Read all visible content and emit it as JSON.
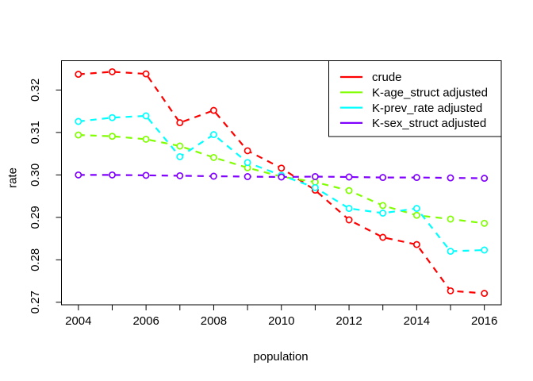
{
  "chart_data": {
    "type": "line",
    "title": "",
    "xlabel": "population",
    "ylabel": "rate",
    "x": [
      2004,
      2005,
      2006,
      2007,
      2008,
      2009,
      2010,
      2011,
      2012,
      2013,
      2014,
      2015,
      2016
    ],
    "series": [
      {
        "name": "crude",
        "color": "#FF0000",
        "values": [
          0.3237,
          0.3243,
          0.3238,
          0.3123,
          0.3152,
          0.3057,
          0.3016,
          0.2964,
          0.2894,
          0.2853,
          0.2836,
          0.2727,
          0.2721
        ]
      },
      {
        "name": "K-age_struct adjusted",
        "color": "#80FF00",
        "values": [
          0.3094,
          0.3091,
          0.3084,
          0.3068,
          0.3041,
          0.3017,
          0.2996,
          0.2983,
          0.2963,
          0.2928,
          0.2905,
          0.2896,
          0.2886
        ]
      },
      {
        "name": "K-prev_rate adjusted",
        "color": "#00FFFF",
        "values": [
          0.3126,
          0.3135,
          0.3139,
          0.3043,
          0.3095,
          0.3029,
          0.2999,
          0.297,
          0.2921,
          0.291,
          0.2921,
          0.282,
          0.2823
        ]
      },
      {
        "name": "K-sex_struct adjusted",
        "color": "#8000FF",
        "values": [
          0.3,
          0.3,
          0.2999,
          0.2998,
          0.2997,
          0.2996,
          0.2995,
          0.2996,
          0.2995,
          0.2994,
          0.2994,
          0.2993,
          0.2992
        ]
      }
    ],
    "xlim": [
      2003.5,
      2016.5
    ],
    "ylim": [
      0.2694,
      0.3269
    ],
    "x_ticks_all_years": [
      2004,
      2005,
      2006,
      2007,
      2008,
      2009,
      2010,
      2011,
      2012,
      2013,
      2014,
      2015,
      2016
    ],
    "x_tick_labels": [
      {
        "value": 2004,
        "label": "2004"
      },
      {
        "value": 2006,
        "label": "2006"
      },
      {
        "value": 2008,
        "label": "2008"
      },
      {
        "value": 2010,
        "label": "2010"
      },
      {
        "value": 2012,
        "label": "2012"
      },
      {
        "value": 2014,
        "label": "2014"
      },
      {
        "value": 2016,
        "label": "2016"
      }
    ],
    "y_ticks": [
      {
        "value": 0.27,
        "label": "0.27"
      },
      {
        "value": 0.28,
        "label": "0.28"
      },
      {
        "value": 0.29,
        "label": "0.29"
      },
      {
        "value": 0.3,
        "label": "0.30"
      },
      {
        "value": 0.31,
        "label": "0.31"
      },
      {
        "value": 0.32,
        "label": "0.32"
      }
    ],
    "legend": {
      "position": "topright",
      "entries": [
        "crude",
        "K-age_struct adjusted",
        "K-prev_rate adjusted",
        "K-sex_struct adjusted"
      ]
    },
    "grid": false,
    "line_style": "dashed",
    "marker": "open-circle",
    "colors": {
      "axis": "#000000",
      "background": "#ffffff"
    }
  }
}
